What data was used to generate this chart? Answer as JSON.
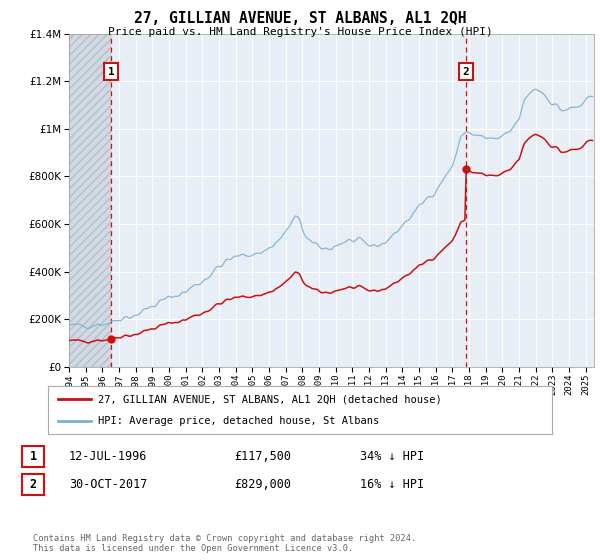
{
  "title": "27, GILLIAN AVENUE, ST ALBANS, AL1 2QH",
  "subtitle": "Price paid vs. HM Land Registry's House Price Index (HPI)",
  "legend_line1": "27, GILLIAN AVENUE, ST ALBANS, AL1 2QH (detached house)",
  "legend_line2": "HPI: Average price, detached house, St Albans",
  "annotation1_label": "1",
  "annotation1_date": "12-JUL-1996",
  "annotation1_price": "£117,500",
  "annotation1_hpi": "34% ↓ HPI",
  "annotation2_label": "2",
  "annotation2_date": "30-OCT-2017",
  "annotation2_price": "£829,000",
  "annotation2_hpi": "16% ↓ HPI",
  "footer": "Contains HM Land Registry data © Crown copyright and database right 2024.\nThis data is licensed under the Open Government Licence v3.0.",
  "sale1_x": 1996.53,
  "sale1_y": 117500,
  "sale2_x": 2017.83,
  "sale2_y": 829000,
  "hpi_color": "#7bafd4",
  "price_color": "#cc1111",
  "dashed_line_color": "#cc1111",
  "plot_bg_color": "#e8eef5",
  "ylim_max": 1400000,
  "xlim_min": 1994,
  "xlim_max": 2025.5,
  "yticks": [
    0,
    200000,
    400000,
    600000,
    800000,
    1000000,
    1200000,
    1400000
  ]
}
